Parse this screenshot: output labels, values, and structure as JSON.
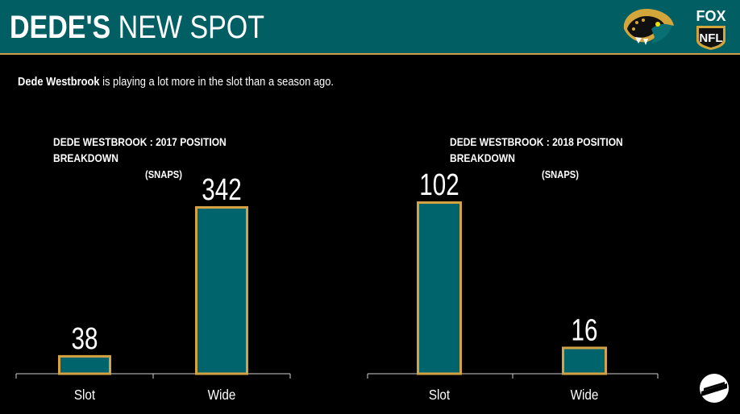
{
  "header": {
    "title_bold": "DEDE'S",
    "title_light": "NEW SPOT",
    "team_logo_icon": "jaguars-logo-icon",
    "network_logo": {
      "line1": "FOX",
      "line2": "NFL"
    }
  },
  "subtitle": {
    "name": "Dede Westbrook",
    "text": " is playing a lot more in the slot than a season ago."
  },
  "colors": {
    "header_bg": "#015f63",
    "bar_fill": "#00646c",
    "bar_border": "#d5a243",
    "background": "#000000"
  },
  "chart_data": [
    {
      "type": "bar",
      "title": "DEDE WESTBROOK : 2017 POSITION BREAKDOWN",
      "title_line1": "DEDE WESTBROOK : 2017 POSITION",
      "title_line2": "BREAKDOWN",
      "units": "(SNAPS)",
      "categories": [
        "Slot",
        "Wide"
      ],
      "values": [
        38,
        342
      ],
      "value_labels": [
        "38",
        "342"
      ],
      "ylim": [
        0,
        342
      ]
    },
    {
      "type": "bar",
      "title": "DEDE WESTBROOK : 2018 POSITION BREAKDOWN",
      "title_line1": "DEDE WESTBROOK : 2018 POSITION",
      "title_line2": "BREAKDOWN",
      "units": "(SNAPS)",
      "categories": [
        "Slot",
        "Wide"
      ],
      "values": [
        102,
        16
      ],
      "value_labels": [
        "102",
        "16"
      ],
      "ylim": [
        0,
        102
      ]
    }
  ],
  "footer": {
    "logo_icon": "pff-logo-icon"
  }
}
